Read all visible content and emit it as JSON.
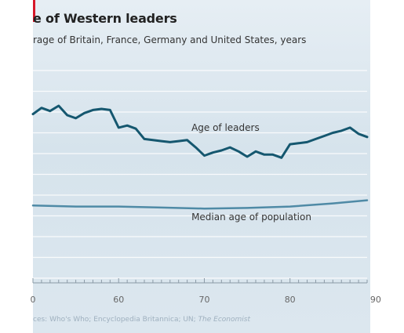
{
  "header": {
    "title": "e of Western leaders",
    "subtitle": "rage of Britain, France, Germany and United States, years"
  },
  "footer": {
    "source_prefix": "ces: Who's Who; Encyclopedia Britannica; UN; ",
    "source_italic": "The Economist"
  },
  "colors": {
    "leaders_line": "#15576f",
    "population_line": "#4f8aa6",
    "gridline": "#ffffff",
    "title_accent": "#d7192a"
  },
  "chart_data": {
    "type": "line",
    "x_tick_labels": [
      "0",
      "60",
      "70",
      "80",
      "90"
    ],
    "x_ticks": [
      1950,
      1960,
      1970,
      1980,
      1990
    ],
    "xlim": [
      1950,
      1989
    ],
    "ylim": [
      0,
      10
    ],
    "grid": true,
    "series": [
      {
        "name": "Age of leaders",
        "color": "#15576f",
        "x": [
          1950,
          1951,
          1952,
          1953,
          1954,
          1955,
          1956,
          1957,
          1958,
          1959,
          1960,
          1961,
          1962,
          1963,
          1964,
          1965,
          1966,
          1967,
          1968,
          1969,
          1970,
          1971,
          1972,
          1973,
          1974,
          1975,
          1976,
          1977,
          1978,
          1979,
          1980,
          1981,
          1982,
          1983,
          1984,
          1985,
          1986,
          1987,
          1988,
          1989
        ],
        "values": [
          7.9,
          8.2,
          8.05,
          8.3,
          7.85,
          7.7,
          7.95,
          8.1,
          8.15,
          8.1,
          7.25,
          7.35,
          7.2,
          6.7,
          6.65,
          6.6,
          6.55,
          6.6,
          6.65,
          6.3,
          5.9,
          6.05,
          6.15,
          6.3,
          6.1,
          5.85,
          6.1,
          5.95,
          5.95,
          5.8,
          6.45,
          6.5,
          6.55,
          6.7,
          6.85,
          7.0,
          7.1,
          7.25,
          6.95,
          6.8
        ]
      },
      {
        "name": "Median age of population",
        "color": "#4f8aa6",
        "x": [
          1950,
          1955,
          1960,
          1965,
          1970,
          1975,
          1980,
          1985,
          1989
        ],
        "values": [
          3.5,
          3.45,
          3.45,
          3.4,
          3.35,
          3.38,
          3.45,
          3.6,
          3.75
        ]
      }
    ],
    "annotations": [
      {
        "text": "Age of leaders",
        "x": 1968.5,
        "y": 7.1
      },
      {
        "text": "Median age of population",
        "x": 1968.5,
        "y": 2.8
      }
    ]
  }
}
